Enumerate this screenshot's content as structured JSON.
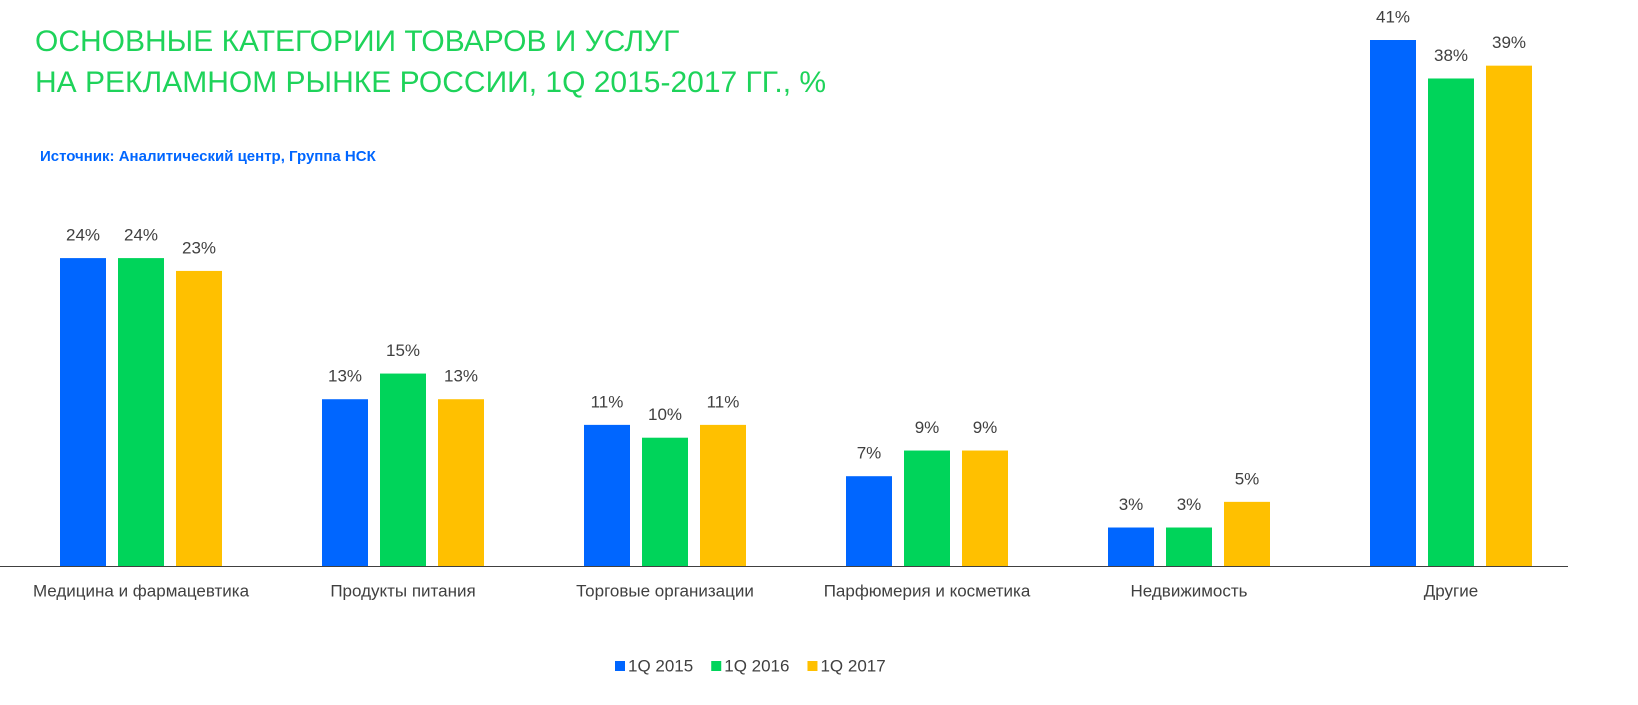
{
  "chart_data": {
    "type": "bar",
    "title": [
      "ОСНОВНЫЕ КАТЕГОРИИ ТОВАРОВ И УСЛУГ",
      "НА РЕКЛАМНОМ РЫНКЕ РОССИИ, 1Q 2015-2017 ГГ., %"
    ],
    "subtitle": "Источник: Аналитический центр, Группа НСК",
    "categories": [
      "Медицина и фармацевтика",
      "Продукты питания",
      "Торговые организации",
      "Парфюмерия и косметика",
      "Недвижимость",
      "Другие"
    ],
    "series": [
      {
        "name": "1Q 2015",
        "color": "#0066ff",
        "values": [
          24,
          13,
          11,
          7,
          3,
          41
        ],
        "value_labels": [
          "24%",
          "13%",
          "11%",
          "7%",
          "3%",
          "41%"
        ]
      },
      {
        "name": "1Q 2016",
        "color": "#00d45a",
        "values": [
          24,
          15,
          10,
          9,
          3,
          38
        ],
        "value_labels": [
          "24%",
          "15%",
          "10%",
          "9%",
          "3%",
          "38%"
        ]
      },
      {
        "name": "1Q 2017",
        "color": "#ffc000",
        "values": [
          23,
          13,
          11,
          9,
          5,
          39
        ],
        "value_labels": [
          "23%",
          "13%",
          "11%",
          "9%",
          "5%",
          "39%"
        ]
      }
    ],
    "legend": "bottom"
  }
}
